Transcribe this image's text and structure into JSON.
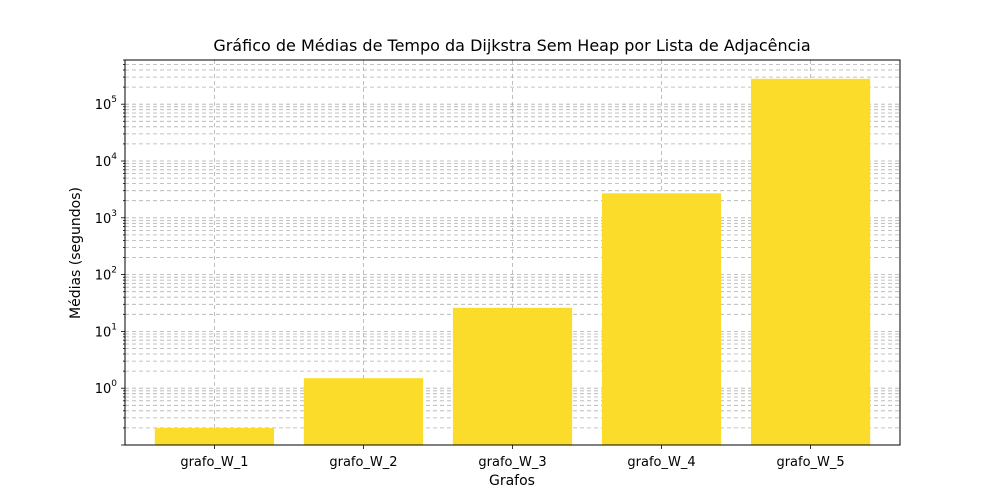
{
  "chart_data": {
    "type": "bar",
    "title": "Gráfico de Médias de Tempo da Dijkstra Sem Heap por Lista de Adjacência",
    "xlabel": "Grafos",
    "ylabel": "Médias (segundos)",
    "yscale": "log",
    "ylim": [
      0.1,
      600000
    ],
    "grid": true,
    "bar_color": "#fcdc2a",
    "categories": [
      "grafo_W_1",
      "grafo_W_2",
      "grafo_W_3",
      "grafo_W_4",
      "grafo_W_5"
    ],
    "values": [
      0.2,
      1.5,
      26,
      2700,
      280000
    ],
    "yticks": [
      {
        "value": 1,
        "base": "10",
        "exp": "0"
      },
      {
        "value": 10,
        "base": "10",
        "exp": "1"
      },
      {
        "value": 100,
        "base": "10",
        "exp": "2"
      },
      {
        "value": 1000,
        "base": "10",
        "exp": "3"
      },
      {
        "value": 10000,
        "base": "10",
        "exp": "4"
      },
      {
        "value": 100000,
        "base": "10",
        "exp": "5"
      }
    ]
  }
}
